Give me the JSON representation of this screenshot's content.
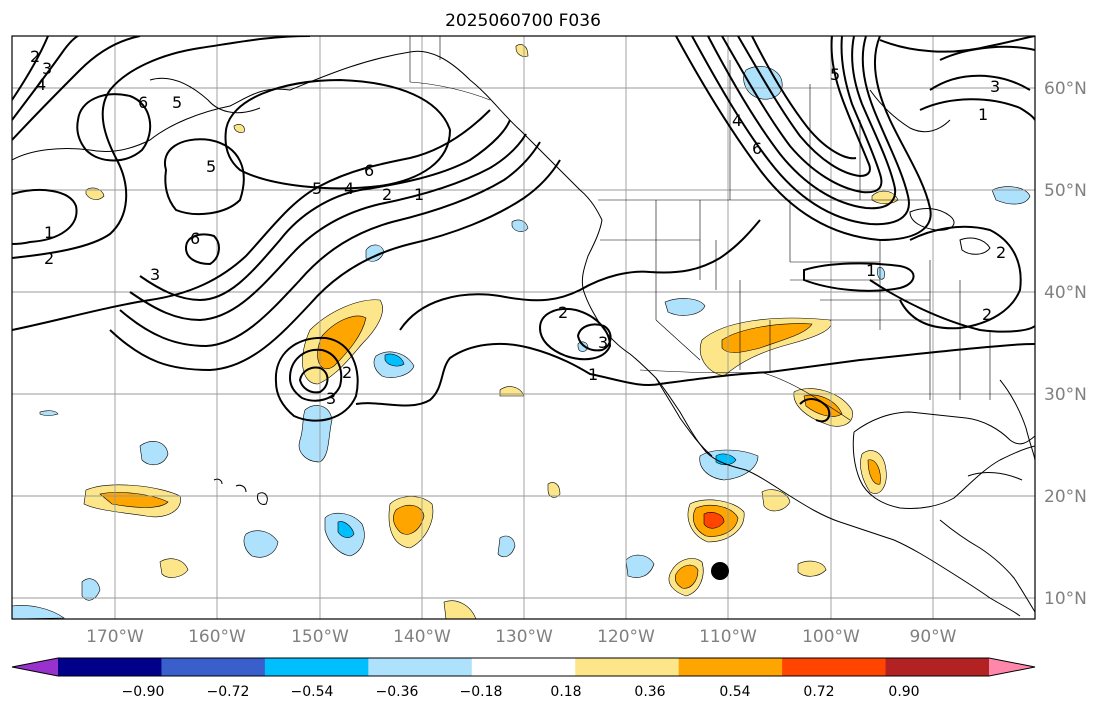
{
  "title": "2025060700 F036",
  "lon_labels": [
    "170°W",
    "160°W",
    "150°W",
    "140°W",
    "130°W",
    "120°W",
    "110°W",
    "100°W",
    "90°W"
  ],
  "lat_labels": [
    "60°N",
    "50°N",
    "40°N",
    "30°N",
    "20°N",
    "10°N"
  ],
  "contour_labels": [
    "2",
    "3",
    "4",
    "1",
    "2",
    "6",
    "5",
    "5",
    "6",
    "3",
    "5",
    "4",
    "2",
    "1",
    "6",
    "2",
    "3",
    "2",
    "3",
    "1",
    "6",
    "4",
    "5",
    "3",
    "1",
    "1",
    "2",
    "2"
  ],
  "colorbar": {
    "ticks": [
      "−0.90",
      "−0.72",
      "−0.54",
      "−0.36",
      "−0.18",
      "0.18",
      "0.36",
      "0.54",
      "0.72",
      "0.90"
    ],
    "colors": [
      "#9932cc",
      "#00008b",
      "#3a5fcd",
      "#00bfff",
      "#aee1fb",
      "#ffffff",
      "#fde68a",
      "#ffa500",
      "#ff4500",
      "#b22222",
      "#ff88aa"
    ]
  },
  "marker": "storm-center-dot"
}
